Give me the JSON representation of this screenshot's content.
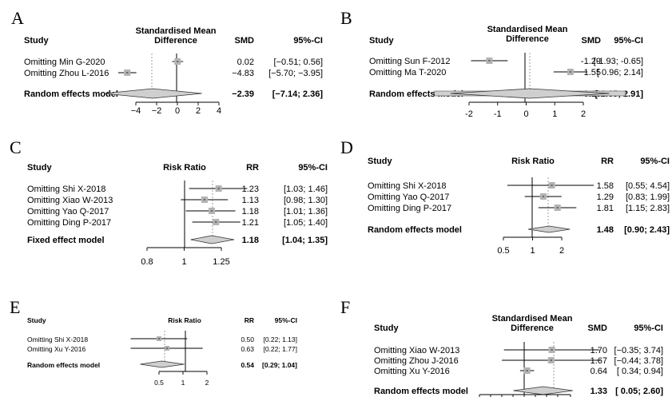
{
  "chart_data": [
    {
      "type": "forest",
      "panel": "A",
      "headers": {
        "study": "Study",
        "measure": [
          "Standardised Mean",
          "Difference"
        ],
        "effect": "SMD",
        "ci": "95%-CI"
      },
      "studies": [
        {
          "name": "Omitting Min G-2020",
          "est": 0.02,
          "lo": -0.51,
          "hi": 0.56,
          "text": "0.02",
          "ci_text": "[−0.51;  0.56]"
        },
        {
          "name": "Omitting Zhou L-2016",
          "est": -4.83,
          "lo": -5.7,
          "hi": -3.95,
          "text": "−4.83",
          "ci_text": "[−5.70; −3.95]"
        }
      ],
      "summary": {
        "name": "Random effects model",
        "est": -2.39,
        "lo": -7.14,
        "hi": 2.36,
        "text": "−2.39",
        "ci_text": "[−7.14;  2.36]"
      },
      "xlim": [
        -5.5,
        4.5
      ],
      "ticks": [
        {
          "v": -4,
          "t": "−4"
        },
        {
          "v": -2,
          "t": "−2"
        },
        {
          "v": 0,
          "t": "0"
        },
        {
          "v": 2,
          "t": "2"
        },
        {
          "v": 4,
          "t": "4"
        }
      ]
    },
    {
      "type": "forest",
      "panel": "B",
      "headers": {
        "study": "Study",
        "measure": [
          "Standardised Mean",
          "Difference"
        ],
        "effect": "SMD",
        "ci": "95%-CI"
      },
      "studies": [
        {
          "name": "Omitting Sun F-2012",
          "est": -1.29,
          "lo": -1.93,
          "hi": -0.65,
          "text": "-1.29",
          "ci_text": "[-1.93; -0.65]"
        },
        {
          "name": "Omitting Ma T-2020",
          "est": 1.55,
          "lo": 0.96,
          "hi": 2.14,
          "text": "1.55",
          "ci_text": "[ 0.96;  2.14]"
        }
      ],
      "summary": {
        "name": "Random effects model",
        "est": 0.13,
        "lo": -2.65,
        "hi": 2.91,
        "text": "0.13",
        "ci_text": "[-2.65;  2.91]"
      },
      "xlim": [
        -2.4,
        2.6
      ],
      "ticks": [
        {
          "v": -2,
          "t": "-2"
        },
        {
          "v": -1,
          "t": "-1"
        },
        {
          "v": 0,
          "t": "0"
        },
        {
          "v": 1,
          "t": "1"
        },
        {
          "v": 2,
          "t": "2"
        }
      ]
    },
    {
      "type": "forest",
      "panel": "C",
      "headers": {
        "study": "Study",
        "measure": [
          "Risk Ratio"
        ],
        "effect": "RR",
        "ci": "95%-CI"
      },
      "studies": [
        {
          "name": "Omitting Shi X-2018",
          "est": 1.23,
          "lo": 1.03,
          "hi": 1.46,
          "text": "1.23",
          "ci_text": "[1.03; 1.46]"
        },
        {
          "name": "Omitting Xiao W-2013",
          "est": 1.13,
          "lo": 0.98,
          "hi": 1.3,
          "text": "1.13",
          "ci_text": "[0.98; 1.30]"
        },
        {
          "name": "Omitting Yao Q-2017",
          "est": 1.18,
          "lo": 1.01,
          "hi": 1.36,
          "text": "1.18",
          "ci_text": "[1.01; 1.36]"
        },
        {
          "name": "Omitting Ding P-2017",
          "est": 1.21,
          "lo": 1.05,
          "hi": 1.4,
          "text": "1.21",
          "ci_text": "[1.05; 1.40]"
        }
      ],
      "summary": {
        "name": "Fixed effect model",
        "est": 1.18,
        "lo": 1.04,
        "hi": 1.35,
        "text": "1.18",
        "ci_text": "[1.04; 1.35]"
      },
      "xlim": [
        0.8,
        1.25
      ],
      "ticks": [
        {
          "v": 0.8,
          "t": "0.8"
        },
        {
          "v": 1,
          "t": "1"
        },
        {
          "v": 1.25,
          "t": "1.25"
        }
      ]
    },
    {
      "type": "forest",
      "panel": "D",
      "headers": {
        "study": "Study",
        "measure": [
          "Risk Ratio"
        ],
        "effect": "RR",
        "ci": "95%-CI"
      },
      "studies": [
        {
          "name": "Omitting Shi X-2018",
          "est": 1.58,
          "lo": 0.55,
          "hi": 4.54,
          "text": "1.58",
          "ci_text": "[0.55; 4.54]"
        },
        {
          "name": "Omitting Yao Q-2017",
          "est": 1.29,
          "lo": 0.83,
          "hi": 1.99,
          "text": "1.29",
          "ci_text": "[0.83; 1.99]"
        },
        {
          "name": "Omitting Ding P-2017",
          "est": 1.81,
          "lo": 1.15,
          "hi": 2.83,
          "text": "1.81",
          "ci_text": "[1.15; 2.83]"
        }
      ],
      "summary": {
        "name": "Random effects model",
        "est": 1.48,
        "lo": 0.9,
        "hi": 2.43,
        "text": "1.48",
        "ci_text": "[0.90; 2.43]"
      },
      "xlim": [
        0.5,
        2
      ],
      "ticks": [
        {
          "v": 0.5,
          "t": "0.5"
        },
        {
          "v": 1,
          "t": "1"
        },
        {
          "v": 2,
          "t": "2"
        }
      ]
    },
    {
      "type": "forest",
      "panel": "E",
      "headers": {
        "study": "Study",
        "measure": [
          "Risk Ratio"
        ],
        "effect": "RR",
        "ci": "95%-CI"
      },
      "studies": [
        {
          "name": "Omitting Shi X-2018",
          "est": 0.5,
          "lo": 0.22,
          "hi": 1.13,
          "text": "0.50",
          "ci_text": "[0.22; 1.13]"
        },
        {
          "name": "Omitting Xu Y-2016",
          "est": 0.63,
          "lo": 0.22,
          "hi": 1.77,
          "text": "0.63",
          "ci_text": "[0.22; 1.77]"
        }
      ],
      "summary": {
        "name": "Random effects model",
        "est": 0.54,
        "lo": 0.29,
        "hi": 1.04,
        "text": "0.54",
        "ci_text": "[0.29; 1.04]"
      },
      "xlim": [
        0.5,
        2
      ],
      "ticks": [
        {
          "v": 0.5,
          "t": "0.5"
        },
        {
          "v": 1,
          "t": "1"
        },
        {
          "v": 2,
          "t": "2"
        }
      ]
    },
    {
      "type": "forest",
      "panel": "F",
      "headers": {
        "study": "Study",
        "measure": [
          "Standardised Mean",
          "Difference"
        ],
        "effect": "SMD",
        "ci": "95%-CI"
      },
      "studies": [
        {
          "name": "Omitting Xiao W-2013",
          "est": 1.7,
          "lo": -0.35,
          "hi": 3.74,
          "text": "1.70",
          "ci_text": "[−0.35; 3.74]"
        },
        {
          "name": "Omitting Zhou J-2016",
          "est": 1.67,
          "lo": -0.44,
          "hi": 3.78,
          "text": "1.67",
          "ci_text": "[−0.44; 3.78]"
        },
        {
          "name": "Omitting Xu Y-2016",
          "est": 0.64,
          "lo": 0.34,
          "hi": 0.94,
          "text": "0.64",
          "ci_text": "[ 0.34; 0.94]"
        }
      ],
      "summary": {
        "name": "Random effects model",
        "est": 1.33,
        "lo": 0.05,
        "hi": 2.6,
        "text": "1.33",
        "ci_text": "[ 0.05; 2.60]"
      },
      "xlim": [
        -3,
        3
      ],
      "ticks": []
    }
  ]
}
